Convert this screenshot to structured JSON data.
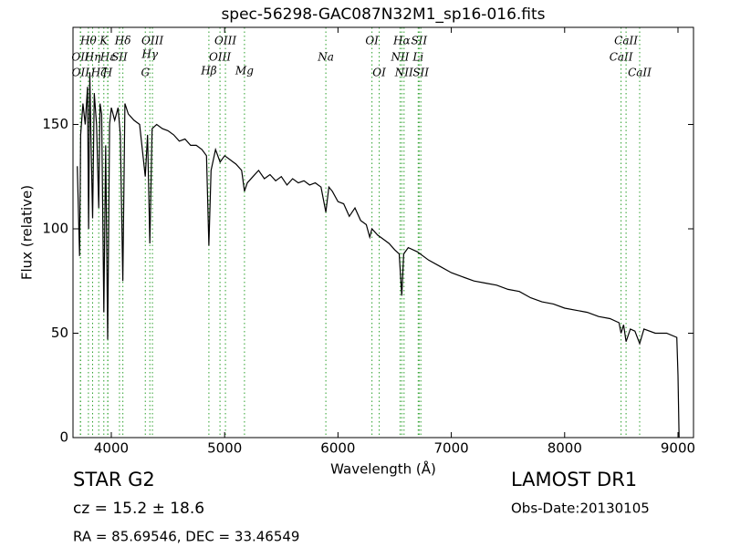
{
  "chart_data": {
    "type": "line",
    "title": "spec-56298-GAC087N32M1_sp16-016.fits",
    "x_label": "Wavelength (Å)",
    "y_label": "Flux (relative)",
    "xlim": [
      3662,
      9137
    ],
    "ylim": [
      0,
      196.5
    ],
    "xticks": [
      4000,
      5000,
      6000,
      7000,
      8000,
      9000
    ],
    "yticks": [
      0,
      50,
      100,
      150
    ],
    "color": "#000000",
    "line_color": "#2ca02c",
    "x": [
      3700,
      3720,
      3730,
      3750,
      3770,
      3790,
      3800,
      3810,
      3820,
      3835,
      3850,
      3870,
      3889,
      3900,
      3915,
      3934,
      3950,
      3968,
      3985,
      4000,
      4030,
      4060,
      4080,
      4102,
      4120,
      4150,
      4200,
      4250,
      4300,
      4320,
      4340,
      4360,
      4400,
      4450,
      4500,
      4550,
      4600,
      4650,
      4700,
      4750,
      4800,
      4840,
      4861,
      4880,
      4920,
      4960,
      5000,
      5050,
      5100,
      5150,
      5175,
      5200,
      5250,
      5300,
      5350,
      5400,
      5450,
      5500,
      5550,
      5600,
      5650,
      5700,
      5750,
      5800,
      5850,
      5893,
      5920,
      5950,
      6000,
      6050,
      6100,
      6150,
      6200,
      6250,
      6280,
      6300,
      6350,
      6400,
      6450,
      6500,
      6540,
      6563,
      6580,
      6620,
      6700,
      6800,
      6900,
      7000,
      7100,
      7200,
      7300,
      7400,
      7500,
      7600,
      7700,
      7800,
      7900,
      8000,
      8100,
      8200,
      8300,
      8400,
      8480,
      8498,
      8520,
      8542,
      8580,
      8620,
      8662,
      8700,
      8800,
      8900,
      8990,
      9000,
      9010
    ],
    "values": [
      130,
      87,
      145,
      160,
      150,
      168,
      100,
      175,
      145,
      105,
      165,
      150,
      110,
      160,
      155,
      60,
      140,
      47,
      150,
      158,
      152,
      158,
      145,
      75,
      160,
      155,
      152,
      150,
      125,
      145,
      93,
      148,
      150,
      148,
      147,
      145,
      142,
      143,
      140,
      140,
      138,
      135,
      92,
      128,
      138,
      132,
      135,
      133,
      131,
      128,
      118,
      122,
      125,
      128,
      124,
      126,
      123,
      125,
      121,
      124,
      122,
      123,
      121,
      122,
      120,
      108,
      120,
      118,
      113,
      112,
      106,
      110,
      104,
      102,
      96,
      100,
      97,
      95,
      93,
      90,
      88,
      68,
      88,
      91,
      89,
      85,
      82,
      79,
      77,
      75,
      74,
      73,
      71,
      70,
      67,
      65,
      64,
      62,
      61,
      60,
      58,
      57,
      55,
      50,
      54,
      46,
      52,
      51,
      45,
      52,
      50,
      50,
      48,
      30,
      0
    ],
    "lines": [
      {
        "label": "OII",
        "wavelength": 3727
      },
      {
        "label": "Hθ",
        "wavelength": 3798
      },
      {
        "label": "OII",
        "wavelength": 3729
      },
      {
        "label": "Hη",
        "wavelength": 3835
      },
      {
        "label": "Hζ",
        "wavelength": 3889
      },
      {
        "label": "K",
        "wavelength": 3934
      },
      {
        "label": "Hε",
        "wavelength": 3970
      },
      {
        "label": "H",
        "wavelength": 3968
      },
      {
        "label": "SII",
        "wavelength": 4072
      },
      {
        "label": "Hδ",
        "wavelength": 4102
      },
      {
        "label": "G",
        "wavelength": 4300
      },
      {
        "label": "Hγ",
        "wavelength": 4340
      },
      {
        "label": "OIII",
        "wavelength": 4363
      },
      {
        "label": "Hβ",
        "wavelength": 4861
      },
      {
        "label": "OIII",
        "wavelength": 4959
      },
      {
        "label": "OIII",
        "wavelength": 5007
      },
      {
        "label": "Mg",
        "wavelength": 5175
      },
      {
        "label": "Na",
        "wavelength": 5893
      },
      {
        "label": "OI",
        "wavelength": 6300
      },
      {
        "label": "OI",
        "wavelength": 6364
      },
      {
        "label": "NII",
        "wavelength": 6548
      },
      {
        "label": "Hα",
        "wavelength": 6563
      },
      {
        "label": "NII",
        "wavelength": 6583
      },
      {
        "label": "Li",
        "wavelength": 6708
      },
      {
        "label": "SII",
        "wavelength": 6716
      },
      {
        "label": "SII",
        "wavelength": 6731
      },
      {
        "label": "CaII",
        "wavelength": 8498
      },
      {
        "label": "CaII",
        "wavelength": 8542
      },
      {
        "label": "CaII",
        "wavelength": 8662
      }
    ],
    "info": {
      "class": "STAR   G2",
      "cz": "cz = 15.2  ± 18.6",
      "coords": "RA = 85.69546, DEC = 33.46549",
      "survey": "LAMOST DR1",
      "date": "Obs-Date:20130105"
    }
  }
}
